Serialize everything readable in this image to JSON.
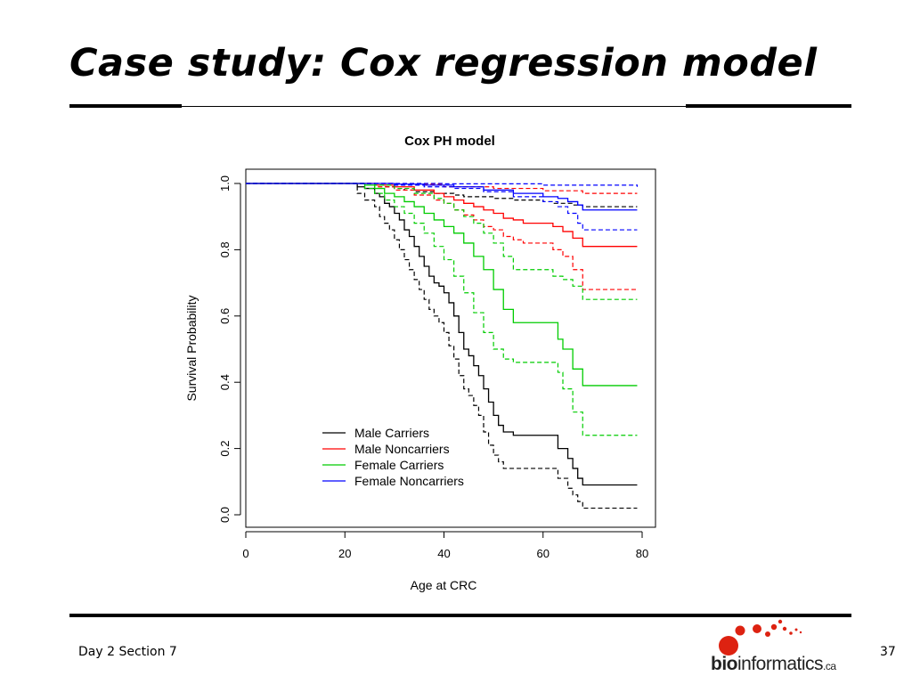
{
  "slide": {
    "title": "Case study: Cox regression model",
    "footer_left": "Day 2 Section 7",
    "page_number": "37"
  },
  "logo": {
    "text_bold": "bio",
    "text_regular": "informatics",
    "text_suffix": ".ca",
    "icon": "red-dots-icon"
  },
  "chart_data": {
    "type": "line",
    "step": true,
    "title": "Cox PH model",
    "xlabel": "Age at CRC",
    "ylabel": "Survival Probability",
    "xlim": [
      0,
      80
    ],
    "ylim": [
      0,
      1
    ],
    "xticks": [
      0,
      20,
      40,
      60,
      80
    ],
    "yticks": [
      0.0,
      0.2,
      0.4,
      0.6,
      0.8,
      1.0
    ],
    "ytick_labels": [
      "0.0",
      "0.2",
      "0.4",
      "0.6",
      "0.8",
      "1.0"
    ],
    "grid": false,
    "legend_position": "bottom-left",
    "series": [
      {
        "name": "Male Carriers",
        "color": "#000000",
        "x": [
          0,
          22,
          22.5,
          24,
          26,
          27,
          28,
          29,
          30,
          31,
          32,
          33,
          34,
          35,
          36,
          37,
          38,
          39,
          40,
          41,
          42,
          43,
          44,
          45,
          46,
          47,
          48,
          49,
          50,
          51,
          52,
          54,
          63,
          65,
          66,
          67,
          68,
          79
        ],
        "y": [
          1.0,
          1.0,
          0.99,
          0.985,
          0.97,
          0.96,
          0.94,
          0.93,
          0.91,
          0.89,
          0.86,
          0.84,
          0.81,
          0.78,
          0.75,
          0.72,
          0.7,
          0.69,
          0.67,
          0.64,
          0.6,
          0.55,
          0.5,
          0.48,
          0.45,
          0.42,
          0.38,
          0.34,
          0.3,
          0.27,
          0.25,
          0.24,
          0.2,
          0.17,
          0.14,
          0.11,
          0.09,
          0.09
        ],
        "lower": {
          "x": [
            0,
            22,
            22.5,
            24,
            26,
            27,
            28,
            29,
            30,
            31,
            32,
            33,
            34,
            35,
            36,
            37,
            38,
            39,
            40,
            41,
            42,
            43,
            44,
            45,
            46,
            47,
            48,
            49,
            50,
            51,
            52,
            54,
            63,
            65,
            66,
            67,
            68,
            79
          ],
          "y": [
            1.0,
            1.0,
            0.97,
            0.95,
            0.93,
            0.9,
            0.88,
            0.86,
            0.83,
            0.8,
            0.77,
            0.74,
            0.71,
            0.68,
            0.65,
            0.62,
            0.6,
            0.58,
            0.55,
            0.51,
            0.47,
            0.42,
            0.38,
            0.36,
            0.33,
            0.3,
            0.25,
            0.21,
            0.18,
            0.16,
            0.14,
            0.14,
            0.11,
            0.08,
            0.06,
            0.04,
            0.02,
            0.02
          ]
        },
        "upper": {
          "x": [
            0,
            22,
            24,
            26,
            28,
            30,
            32,
            34,
            36,
            38,
            40,
            42,
            44,
            46,
            48,
            50,
            52,
            54,
            56,
            60,
            62,
            64,
            66,
            68,
            79
          ],
          "y": [
            1.0,
            1.0,
            1.0,
            0.995,
            0.99,
            0.985,
            0.98,
            0.975,
            0.975,
            0.97,
            0.97,
            0.965,
            0.96,
            0.96,
            0.96,
            0.955,
            0.955,
            0.95,
            0.95,
            0.945,
            0.94,
            0.94,
            0.935,
            0.93,
            0.93
          ]
        }
      },
      {
        "name": "Male Noncarriers",
        "color": "#ff0000",
        "x": [
          0,
          22,
          26,
          30,
          34,
          38,
          40,
          42,
          44,
          46,
          48,
          50,
          52,
          54,
          56,
          62,
          64,
          66,
          68,
          79
        ],
        "y": [
          1.0,
          1.0,
          0.995,
          0.99,
          0.98,
          0.97,
          0.96,
          0.95,
          0.94,
          0.93,
          0.92,
          0.91,
          0.895,
          0.89,
          0.88,
          0.87,
          0.855,
          0.835,
          0.81,
          0.81
        ],
        "lower": {
          "x": [
            0,
            22,
            26,
            30,
            34,
            38,
            40,
            42,
            44,
            46,
            48,
            50,
            52,
            54,
            56,
            62,
            64,
            66,
            68,
            79
          ],
          "y": [
            1.0,
            1.0,
            0.99,
            0.98,
            0.965,
            0.95,
            0.94,
            0.92,
            0.905,
            0.89,
            0.87,
            0.86,
            0.84,
            0.83,
            0.82,
            0.8,
            0.78,
            0.74,
            0.68,
            0.68
          ]
        },
        "upper": {
          "x": [
            0,
            22,
            30,
            40,
            50,
            60,
            68,
            79
          ],
          "y": [
            1.0,
            1.0,
            0.998,
            0.99,
            0.985,
            0.978,
            0.97,
            0.97
          ]
        }
      },
      {
        "name": "Female Carriers",
        "color": "#00cc00",
        "x": [
          0,
          22,
          24,
          26,
          28,
          30,
          32,
          34,
          36,
          38,
          40,
          42,
          44,
          46,
          48,
          50,
          52,
          54,
          63,
          64,
          66,
          68,
          79
        ],
        "y": [
          1.0,
          1.0,
          0.995,
          0.985,
          0.97,
          0.96,
          0.945,
          0.93,
          0.91,
          0.89,
          0.87,
          0.85,
          0.82,
          0.78,
          0.74,
          0.68,
          0.62,
          0.58,
          0.53,
          0.5,
          0.44,
          0.39,
          0.39
        ],
        "lower": {
          "x": [
            0,
            22,
            24,
            26,
            28,
            30,
            32,
            34,
            36,
            38,
            40,
            42,
            44,
            46,
            48,
            50,
            52,
            54,
            63,
            64,
            66,
            68,
            79
          ],
          "y": [
            1.0,
            1.0,
            0.985,
            0.97,
            0.95,
            0.93,
            0.91,
            0.88,
            0.85,
            0.81,
            0.77,
            0.72,
            0.67,
            0.61,
            0.55,
            0.5,
            0.47,
            0.46,
            0.43,
            0.38,
            0.31,
            0.24,
            0.24
          ]
        },
        "upper": {
          "x": [
            0,
            22,
            26,
            30,
            34,
            38,
            40,
            42,
            44,
            46,
            48,
            50,
            52,
            54,
            60,
            62,
            64,
            66,
            68,
            79
          ],
          "y": [
            1.0,
            1.0,
            0.995,
            0.985,
            0.97,
            0.955,
            0.94,
            0.92,
            0.9,
            0.88,
            0.85,
            0.82,
            0.78,
            0.74,
            0.74,
            0.72,
            0.71,
            0.69,
            0.65,
            0.65
          ]
        }
      },
      {
        "name": "Female Noncarriers",
        "color": "#0000ff",
        "x": [
          0,
          22,
          30,
          36,
          42,
          48,
          54,
          60,
          63,
          65,
          67,
          68,
          79
        ],
        "y": [
          1.0,
          1.0,
          0.998,
          0.995,
          0.99,
          0.98,
          0.97,
          0.96,
          0.955,
          0.945,
          0.935,
          0.92,
          0.92
        ],
        "lower": {
          "x": [
            0,
            22,
            30,
            36,
            42,
            48,
            54,
            60,
            63,
            65,
            67,
            68,
            79
          ],
          "y": [
            1.0,
            1.0,
            0.995,
            0.99,
            0.985,
            0.975,
            0.96,
            0.945,
            0.93,
            0.91,
            0.88,
            0.86,
            0.86
          ]
        },
        "upper": {
          "x": [
            0,
            22,
            40,
            60,
            79
          ],
          "y": [
            1.0,
            1.0,
            0.999,
            0.995,
            0.99
          ]
        }
      }
    ]
  }
}
